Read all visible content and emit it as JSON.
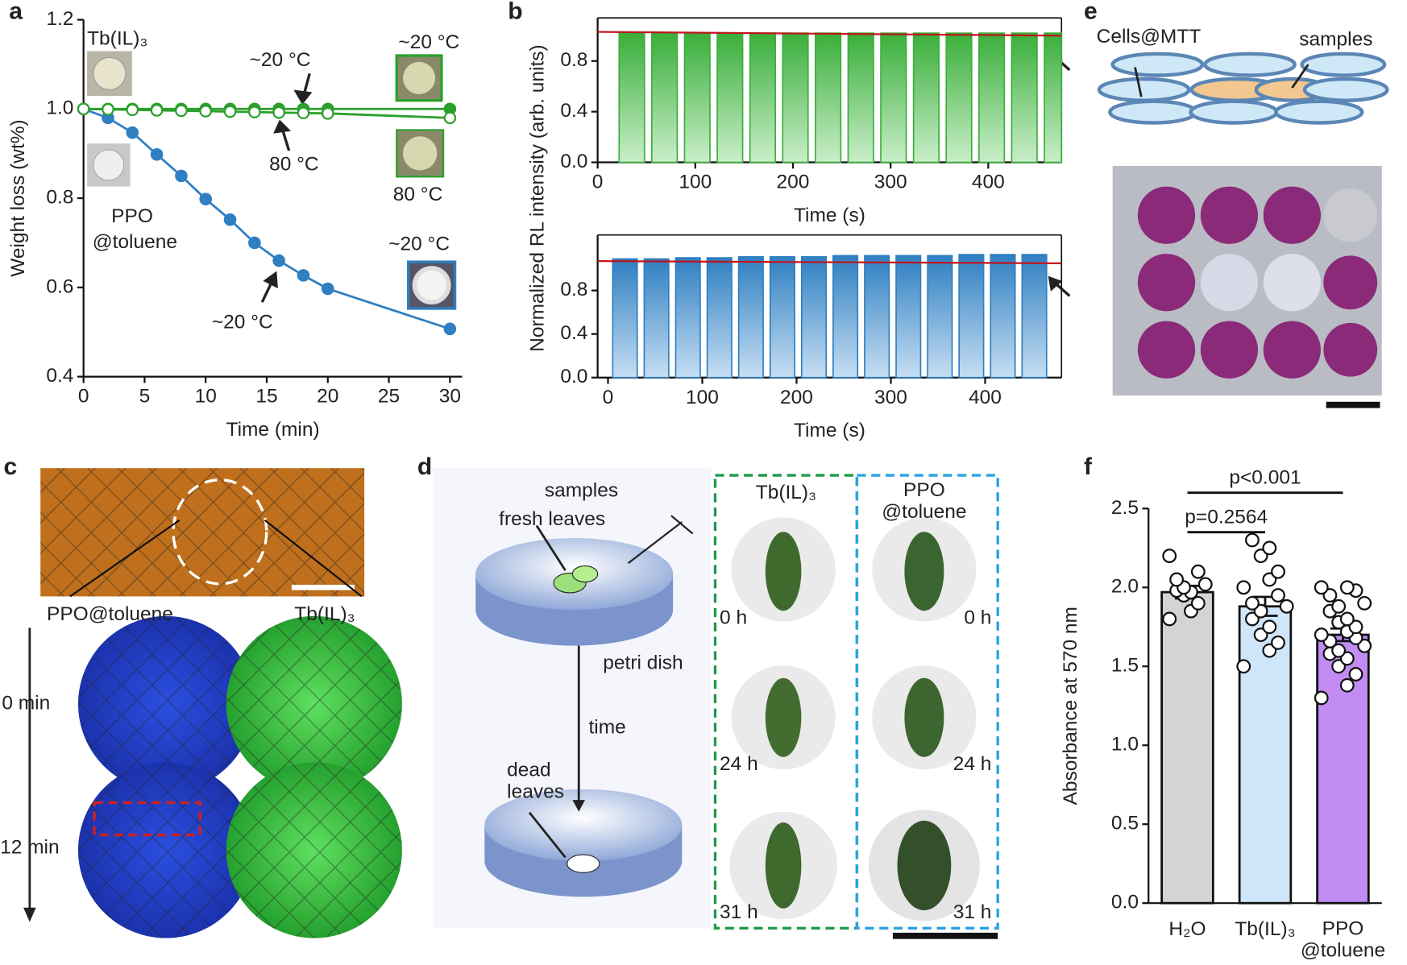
{
  "panel_labels": [
    "a",
    "b",
    "c",
    "d",
    "e",
    "f"
  ],
  "chart_data": [
    {
      "type": "line",
      "xlabel": "Time (min)",
      "ylabel": "Weight loss (wt%)",
      "xlim": [
        0,
        31
      ],
      "ylim": [
        0.4,
        1.2
      ],
      "xticks": [
        0,
        5,
        10,
        15,
        20,
        25,
        30
      ],
      "yticks": [
        0.4,
        0.6,
        0.8,
        {
          "value": 1,
          "label": "1.0"
        },
        1.2
      ],
      "series": [
        {
          "color": "#2f7fc1",
          "marker": "filled",
          "x": [
            0,
            2,
            4,
            6,
            8,
            10,
            12,
            14,
            16,
            18,
            20,
            30
          ],
          "values": [
            1.0,
            0.98,
            0.947,
            0.898,
            0.85,
            0.798,
            0.752,
            0.7,
            0.66,
            0.627,
            0.597,
            0.507
          ]
        },
        {
          "color": "#2ca02c",
          "marker": "filled",
          "x": [
            0,
            2,
            4,
            6,
            8,
            10,
            12,
            14,
            16,
            18,
            20,
            30
          ],
          "values": [
            1.0,
            1.0,
            1.0,
            1.0,
            1.0,
            1.0,
            1.0,
            1.0,
            1.0,
            1.0,
            1.0,
            1.0
          ]
        },
        {
          "color": "#2ca02c",
          "marker": "open",
          "x": [
            0,
            2,
            4,
            6,
            8,
            10,
            12,
            14,
            16,
            18,
            20,
            30
          ],
          "values": [
            1.0,
            0.999,
            0.998,
            0.997,
            0.996,
            0.995,
            0.994,
            0.993,
            0.992,
            0.991,
            0.99,
            0.98
          ]
        }
      ],
      "annotations": [
        {
          "text": "Tb(IL)₃",
          "color": "#2ca02c"
        },
        {
          "text": "~20 °C",
          "color": "#2ca02c"
        },
        {
          "text": "~20 °C",
          "color": "#222222"
        },
        {
          "text": "80 °C",
          "color": "#222222"
        },
        {
          "text": "80 °C",
          "color": "#2ca02c"
        },
        {
          "text": "PPO",
          "color": "#2f7fc1"
        },
        {
          "text": "@toluene",
          "color": "#2f7fc1"
        },
        {
          "text": "~20 °C",
          "color": "#2f7fc1"
        },
        {
          "text": "~20 °C",
          "color": "#222222"
        }
      ]
    },
    {
      "type": "bar",
      "ylabel": "Normalized RL intensity (arb. units)",
      "xlabel": "Time (s)",
      "xlim": [
        0,
        475
      ],
      "ylim": [
        0,
        1.14
      ],
      "xticks": [
        0,
        100,
        200,
        300,
        400
      ],
      "yticks": [
        {
          "value": 0,
          "label": "0.0"
        },
        0.4,
        0.8
      ],
      "color": "#3aae3a",
      "bar_width": 26,
      "x": [
        35,
        68.5,
        102,
        135.5,
        169,
        202.5,
        236,
        269.5,
        303,
        336.5,
        370,
        403.5,
        437,
        470.5
      ],
      "values": [
        1.02,
        1.02,
        1.02,
        1.02,
        1.02,
        1.02,
        1.02,
        1.02,
        1.02,
        1.02,
        1.02,
        1.02,
        1.02,
        1.02
      ],
      "reference": {
        "color": "#c0141c",
        "x": [
          0,
          475
        ],
        "values": [
          1.03,
          1.0
        ]
      }
    },
    {
      "type": "bar",
      "xlabel": "Time (s)",
      "xlim": [
        -11,
        481
      ],
      "ylim": [
        0,
        1.31
      ],
      "xticks": [
        0,
        100,
        200,
        300,
        400
      ],
      "yticks": [
        {
          "value": 0,
          "label": "0.0"
        },
        0.4,
        0.8
      ],
      "color": "#2f7fc1",
      "bar_width": 26,
      "x": [
        18,
        51.4,
        84.8,
        118.2,
        151.6,
        185,
        218.4,
        251.8,
        285.2,
        318.6,
        352,
        385.4,
        418.8,
        452.2
      ],
      "values": [
        1.09,
        1.09,
        1.1,
        1.1,
        1.11,
        1.11,
        1.11,
        1.12,
        1.12,
        1.12,
        1.12,
        1.13,
        1.13,
        1.13
      ],
      "reference": {
        "color": "#c0141c",
        "x": [
          -11,
          481
        ],
        "values": [
          1.07,
          1.05
        ]
      }
    },
    {
      "type": "bar",
      "ylabel": "Absorbance at 570 nm",
      "ylim": [
        0,
        2.5
      ],
      "yticks": [
        {
          "value": 0,
          "label": "0.0"
        },
        0.5,
        {
          "value": 1,
          "label": "1.0"
        },
        1.5,
        {
          "value": 2,
          "label": "2.0"
        },
        2.5
      ],
      "categories": [
        "H₂O",
        "Tb(IL)₃",
        "PPO\n@toluene"
      ],
      "colors": [
        "#d4d4d4",
        "#cfe6fa",
        "#c28cf2"
      ],
      "values": [
        1.97,
        1.88,
        1.7
      ],
      "errors": [
        0.04,
        0.06,
        0.04
      ],
      "points": [
        [
          1.8,
          1.85,
          1.9,
          1.95,
          1.97,
          1.98,
          2.0,
          2.02,
          2.05,
          2.1,
          2.2
        ],
        [
          1.5,
          1.6,
          1.65,
          1.7,
          1.75,
          1.8,
          1.85,
          1.88,
          1.9,
          1.95,
          2.0,
          2.05,
          2.1,
          2.2,
          2.25,
          2.3
        ],
        [
          1.3,
          1.38,
          1.45,
          1.5,
          1.55,
          1.58,
          1.6,
          1.63,
          1.66,
          1.68,
          1.7,
          1.72,
          1.75,
          1.78,
          1.8,
          1.85,
          1.88,
          1.9,
          1.95,
          1.98,
          2.0,
          2.0
        ]
      ],
      "annotations": [
        {
          "text": "p=0.2564",
          "value": 2.35,
          "from": 0,
          "to": 1
        },
        {
          "text": "p<0.001",
          "value": 2.6,
          "from": 0,
          "to": 2
        }
      ]
    }
  ],
  "panel_c": {
    "left": "PPO@toluene",
    "right": "Tb(IL)₃",
    "rows": [
      "0 min",
      "12 min"
    ]
  },
  "panel_d": {
    "samples": "samples",
    "fresh": "fresh leaves",
    "dish": "petri dish",
    "time": "time",
    "dead": "dead\nleaves",
    "col1": "Tb(IL)₃",
    "col2": "PPO\n@toluene",
    "times": [
      "0 h",
      "24 h",
      "31 h"
    ]
  },
  "panel_e": {
    "cells": "Cells@MTT",
    "samples": "samples"
  }
}
